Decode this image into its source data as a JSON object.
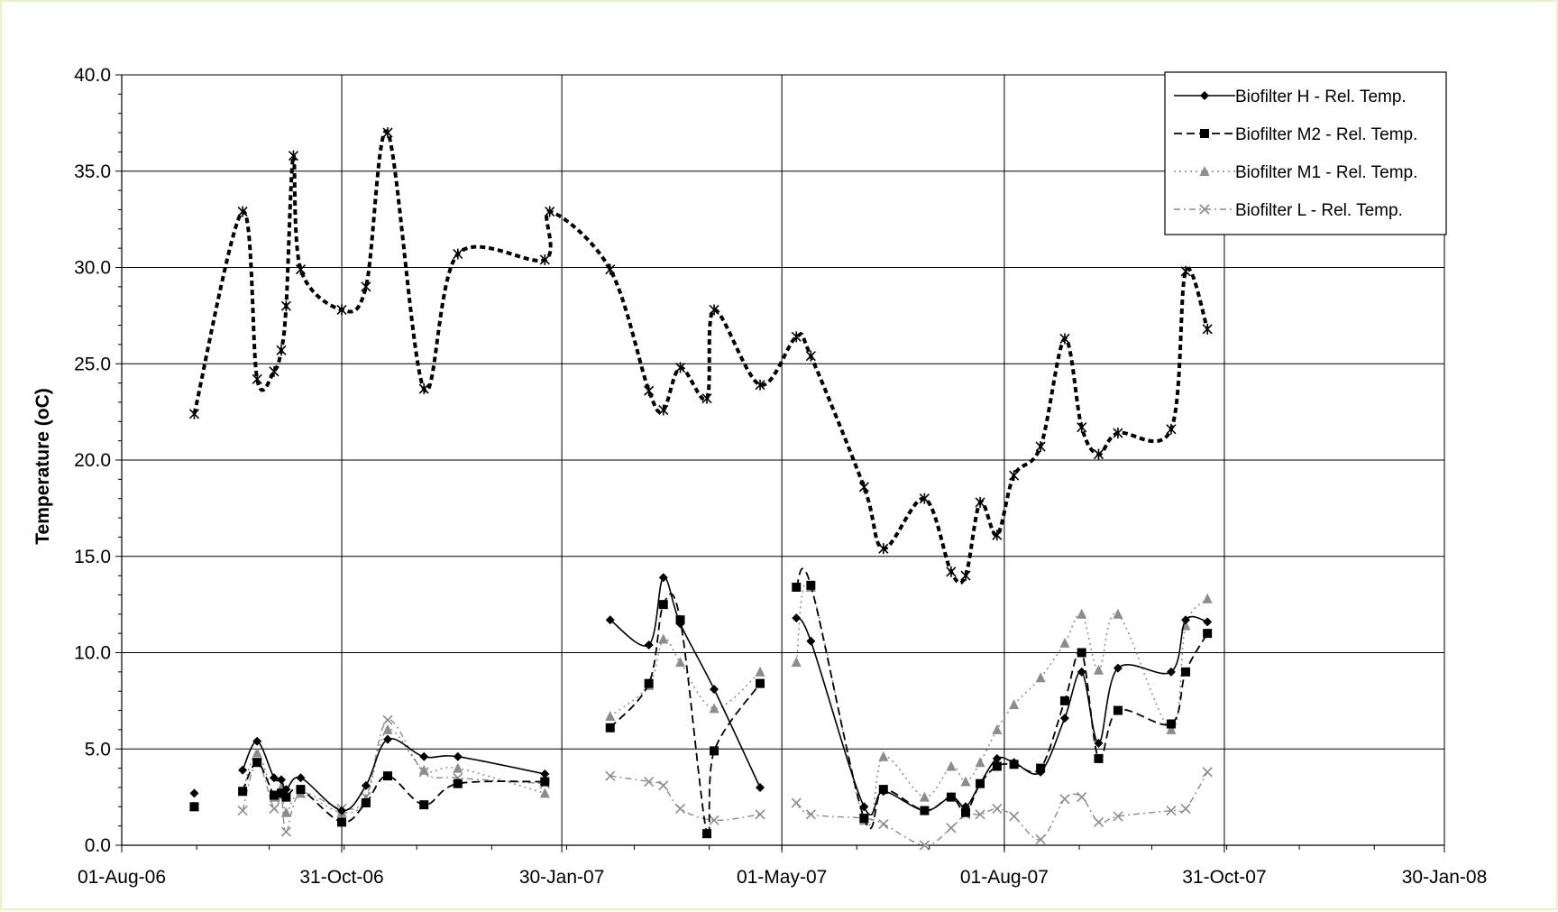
{
  "chart_data": {
    "type": "line",
    "title": "",
    "xlabel": "",
    "ylabel": "Temperature (oC)",
    "ylim": [
      0,
      40
    ],
    "y_ticks": [
      "0.0",
      "5.0",
      "10.0",
      "15.0",
      "20.0",
      "25.0",
      "30.0",
      "35.0",
      "40.0"
    ],
    "xlim": [
      "2006-08-01",
      "2008-01-30"
    ],
    "x_ticks": [
      {
        "label": "01-Aug-06",
        "date": "2006-08-01"
      },
      {
        "label": "31-Oct-06",
        "date": "2006-10-31"
      },
      {
        "label": "30-Jan-07",
        "date": "2007-01-30"
      },
      {
        "label": "01-May-07",
        "date": "2007-05-01"
      },
      {
        "label": "01-Aug-07",
        "date": "2007-08-01"
      },
      {
        "label": "31-Oct-07",
        "date": "2007-10-31"
      },
      {
        "label": "30-Jan-08",
        "date": "2008-01-30"
      }
    ],
    "grid": true,
    "legend_position": "top-right",
    "series": [
      {
        "name": "Biofilter H - Rel. Temp.",
        "color": "#000000",
        "dash": "solid",
        "marker": "diamond",
        "axis": "secondary",
        "segments": [
          [
            [
              "2006-08-31",
              2.7
            ]
          ],
          [
            [
              "2006-09-20",
              3.9
            ],
            [
              "2006-09-26",
              5.4
            ],
            [
              "2006-10-03",
              3.5
            ],
            [
              "2006-10-06",
              3.4
            ],
            [
              "2006-10-08",
              2.9
            ],
            [
              "2006-10-14",
              3.5
            ],
            [
              "2006-10-31",
              1.8
            ],
            [
              "2006-11-10",
              3.1
            ],
            [
              "2006-11-19",
              5.5
            ],
            [
              "2006-12-04",
              4.6
            ],
            [
              "2006-12-18",
              4.6
            ],
            [
              "2007-01-23",
              3.7
            ]
          ],
          [
            [
              "2007-02-19",
              11.7
            ],
            [
              "2007-03-07",
              10.4
            ],
            [
              "2007-03-13",
              13.9
            ],
            [
              "2007-03-20",
              11.5
            ],
            [
              "2007-04-03",
              8.1
            ],
            [
              "2007-04-22",
              3.0
            ]
          ],
          [
            [
              "2007-05-07",
              11.8
            ],
            [
              "2007-05-13",
              10.6
            ],
            [
              "2007-06-04",
              2.0
            ],
            [
              "2007-06-12",
              2.8
            ],
            [
              "2007-06-29",
              1.8
            ],
            [
              "2007-07-10",
              2.5
            ],
            [
              "2007-07-16",
              2.0
            ],
            [
              "2007-07-22",
              3.2
            ],
            [
              "2007-07-29",
              4.5
            ],
            [
              "2007-08-05",
              4.3
            ],
            [
              "2007-08-16",
              3.8
            ],
            [
              "2007-08-26",
              6.6
            ],
            [
              "2007-09-02",
              9.0
            ],
            [
              "2007-09-09",
              5.3
            ],
            [
              "2007-09-17",
              9.2
            ],
            [
              "2007-10-09",
              9.0
            ],
            [
              "2007-10-15",
              11.7
            ],
            [
              "2007-10-24",
              11.6
            ]
          ]
        ]
      },
      {
        "name": "Biofilter M2 - Rel. Temp.",
        "color": "#000000",
        "dash": "dashed",
        "marker": "square",
        "axis": "secondary",
        "segments": [
          [
            [
              "2006-08-31",
              2.0
            ]
          ],
          [
            [
              "2006-09-20",
              2.8
            ],
            [
              "2006-09-26",
              4.3
            ],
            [
              "2006-10-03",
              2.6
            ],
            [
              "2006-10-06",
              2.7
            ],
            [
              "2006-10-08",
              2.5
            ],
            [
              "2006-10-14",
              2.9
            ],
            [
              "2006-10-31",
              1.2
            ],
            [
              "2006-11-10",
              2.2
            ],
            [
              "2006-11-19",
              3.6
            ],
            [
              "2006-12-04",
              2.1
            ],
            [
              "2006-12-18",
              3.2
            ],
            [
              "2007-01-23",
              3.3
            ]
          ],
          [
            [
              "2007-02-19",
              6.1
            ],
            [
              "2007-03-07",
              8.4
            ],
            [
              "2007-03-13",
              12.5
            ],
            [
              "2007-03-20",
              11.7
            ],
            [
              "2007-03-31",
              0.6
            ],
            [
              "2007-04-03",
              4.9
            ],
            [
              "2007-04-22",
              8.4
            ]
          ],
          [
            [
              "2007-05-07",
              13.4
            ],
            [
              "2007-05-13",
              13.5
            ],
            [
              "2007-06-04",
              1.4
            ],
            [
              "2007-06-12",
              2.9
            ],
            [
              "2007-06-29",
              1.8
            ],
            [
              "2007-07-10",
              2.5
            ],
            [
              "2007-07-16",
              1.7
            ],
            [
              "2007-07-22",
              3.2
            ],
            [
              "2007-07-29",
              4.1
            ],
            [
              "2007-08-05",
              4.2
            ],
            [
              "2007-08-16",
              4.0
            ],
            [
              "2007-08-26",
              7.5
            ],
            [
              "2007-09-02",
              10.0
            ],
            [
              "2007-09-09",
              4.5
            ],
            [
              "2007-09-17",
              7.0
            ],
            [
              "2007-10-09",
              6.3
            ],
            [
              "2007-10-15",
              9.0
            ],
            [
              "2007-10-24",
              11.0
            ]
          ]
        ]
      },
      {
        "name": "Biofilter M1 - Rel. Temp.",
        "color": "#8c8c8c",
        "dash": "dotted",
        "marker": "triangle",
        "axis": "secondary",
        "segments": [
          [
            [
              "2006-08-31",
              2.0
            ]
          ],
          [
            [
              "2006-09-20",
              2.8
            ],
            [
              "2006-09-26",
              4.8
            ],
            [
              "2006-10-03",
              2.5
            ],
            [
              "2006-10-06",
              3.0
            ],
            [
              "2006-10-08",
              1.7
            ],
            [
              "2006-10-14",
              2.7
            ],
            [
              "2006-10-31",
              1.7
            ],
            [
              "2006-11-10",
              2.4
            ],
            [
              "2006-11-19",
              6.0
            ],
            [
              "2006-12-04",
              3.9
            ],
            [
              "2006-12-18",
              4.0
            ],
            [
              "2007-01-23",
              2.7
            ]
          ],
          [
            [
              "2007-02-19",
              6.7
            ],
            [
              "2007-03-07",
              8.3
            ],
            [
              "2007-03-13",
              10.7
            ],
            [
              "2007-03-20",
              9.5
            ],
            [
              "2007-04-03",
              7.1
            ],
            [
              "2007-04-22",
              9.0
            ]
          ],
          [
            [
              "2007-05-07",
              9.5
            ],
            [
              "2007-05-13",
              13.4
            ],
            [
              "2007-06-04",
              1.3
            ],
            [
              "2007-06-12",
              4.6
            ],
            [
              "2007-06-29",
              2.5
            ],
            [
              "2007-07-10",
              4.1
            ],
            [
              "2007-07-16",
              3.3
            ],
            [
              "2007-07-22",
              4.3
            ],
            [
              "2007-07-29",
              6.0
            ],
            [
              "2007-08-05",
              7.3
            ],
            [
              "2007-08-16",
              8.7
            ],
            [
              "2007-08-26",
              10.5
            ],
            [
              "2007-09-02",
              12.0
            ],
            [
              "2007-09-09",
              9.1
            ],
            [
              "2007-09-17",
              12.0
            ],
            [
              "2007-10-09",
              6.0
            ],
            [
              "2007-10-15",
              11.4
            ],
            [
              "2007-10-24",
              12.8
            ]
          ]
        ]
      },
      {
        "name": "Biofilter L - Rel. Temp.",
        "color": "#8c8c8c",
        "dash": "dash-dot",
        "marker": "x",
        "axis": "secondary",
        "segments": [
          [
            [
              "2006-09-20",
              1.8
            ],
            [
              "2006-09-26",
              4.3
            ],
            [
              "2006-10-03",
              1.9
            ],
            [
              "2006-10-06",
              2.5
            ],
            [
              "2006-10-08",
              0.7
            ],
            [
              "2006-10-14",
              2.7
            ],
            [
              "2006-10-31",
              1.9
            ],
            [
              "2006-11-10",
              2.5
            ],
            [
              "2006-11-19",
              6.5
            ],
            [
              "2006-12-04",
              3.8
            ],
            [
              "2006-12-18",
              3.5
            ],
            [
              "2007-01-23",
              3.2
            ]
          ],
          [
            [
              "2007-02-19",
              3.6
            ],
            [
              "2007-03-07",
              3.3
            ],
            [
              "2007-03-13",
              3.1
            ],
            [
              "2007-03-20",
              1.9
            ],
            [
              "2007-04-03",
              1.3
            ],
            [
              "2007-04-22",
              1.6
            ]
          ],
          [
            [
              "2007-05-07",
              2.2
            ],
            [
              "2007-05-13",
              1.6
            ],
            [
              "2007-06-04",
              1.4
            ],
            [
              "2007-06-12",
              1.1
            ],
            [
              "2007-06-29",
              0.0
            ],
            [
              "2007-07-10",
              0.9
            ],
            [
              "2007-07-16",
              1.6
            ],
            [
              "2007-07-22",
              1.6
            ],
            [
              "2007-07-29",
              1.9
            ],
            [
              "2007-08-05",
              1.5
            ],
            [
              "2007-08-16",
              0.3
            ],
            [
              "2007-08-26",
              2.4
            ],
            [
              "2007-09-02",
              2.5
            ],
            [
              "2007-09-09",
              1.2
            ],
            [
              "2007-09-17",
              1.5
            ],
            [
              "2007-10-09",
              1.8
            ],
            [
              "2007-10-15",
              1.9
            ],
            [
              "2007-10-24",
              3.8
            ]
          ]
        ]
      },
      {
        "name": "",
        "color": "#000000",
        "dash": "dotted-bold",
        "marker": "asterisk",
        "axis": "primary",
        "segments": [
          [
            [
              "2006-08-31",
              22.4
            ],
            [
              "2006-09-20",
              32.9
            ],
            [
              "2006-09-26",
              24.2
            ],
            [
              "2006-10-03",
              24.6
            ],
            [
              "2006-10-06",
              25.7
            ],
            [
              "2006-10-08",
              28.0
            ],
            [
              "2006-10-11",
              35.8
            ],
            [
              "2006-10-14",
              29.9
            ],
            [
              "2006-10-31",
              27.8
            ],
            [
              "2006-11-10",
              29.0
            ],
            [
              "2006-11-19",
              37.0
            ],
            [
              "2006-12-04",
              23.7
            ],
            [
              "2006-12-18",
              30.7
            ],
            [
              "2007-01-23",
              30.4
            ],
            [
              "2007-01-25",
              32.9
            ],
            [
              "2007-02-19",
              29.9
            ],
            [
              "2007-03-07",
              23.6
            ],
            [
              "2007-03-13",
              22.6
            ],
            [
              "2007-03-20",
              24.8
            ],
            [
              "2007-03-31",
              23.2
            ],
            [
              "2007-04-03",
              27.8
            ],
            [
              "2007-04-22",
              23.9
            ],
            [
              "2007-05-07",
              26.4
            ],
            [
              "2007-05-13",
              25.4
            ],
            [
              "2007-06-04",
              18.6
            ],
            [
              "2007-06-12",
              15.4
            ],
            [
              "2007-06-29",
              18.0
            ],
            [
              "2007-07-10",
              14.2
            ],
            [
              "2007-07-16",
              14.0
            ],
            [
              "2007-07-22",
              17.8
            ],
            [
              "2007-07-29",
              16.1
            ],
            [
              "2007-08-05",
              19.2
            ],
            [
              "2007-08-16",
              20.7
            ],
            [
              "2007-08-26",
              26.3
            ],
            [
              "2007-09-02",
              21.7
            ],
            [
              "2007-09-09",
              20.3
            ],
            [
              "2007-09-17",
              21.4
            ],
            [
              "2007-10-09",
              21.6
            ],
            [
              "2007-10-15",
              29.8
            ],
            [
              "2007-10-24",
              26.8
            ]
          ]
        ]
      }
    ]
  }
}
